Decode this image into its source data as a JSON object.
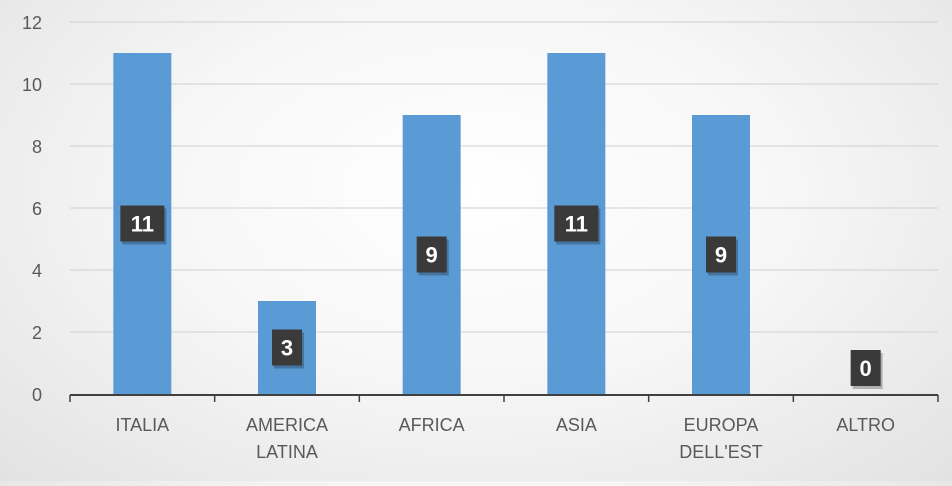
{
  "colors": {
    "bar": "#5b9bd5",
    "label_box": "#3a3a3a",
    "label_text": "#ffffff",
    "axis_text": "#595959",
    "grid": "#d0d0d0",
    "axis_line": "#404040"
  },
  "chart_data": {
    "type": "bar",
    "title": "",
    "xlabel": "",
    "ylabel": "",
    "categories": [
      [
        "ITALIA"
      ],
      [
        "AMERICA",
        "LATINA"
      ],
      [
        "AFRICA"
      ],
      [
        "ASIA"
      ],
      [
        "EUROPA",
        "DELL'EST"
      ],
      [
        "ALTRO"
      ]
    ],
    "values": [
      11,
      3,
      9,
      11,
      9,
      0
    ],
    "data_labels": [
      "11",
      "3",
      "9",
      "11",
      "9",
      "0"
    ],
    "ylim": [
      0,
      12
    ],
    "yticks": [
      "0",
      "2",
      "4",
      "6",
      "8",
      "10",
      "12"
    ],
    "grid": true,
    "legend": "none"
  }
}
